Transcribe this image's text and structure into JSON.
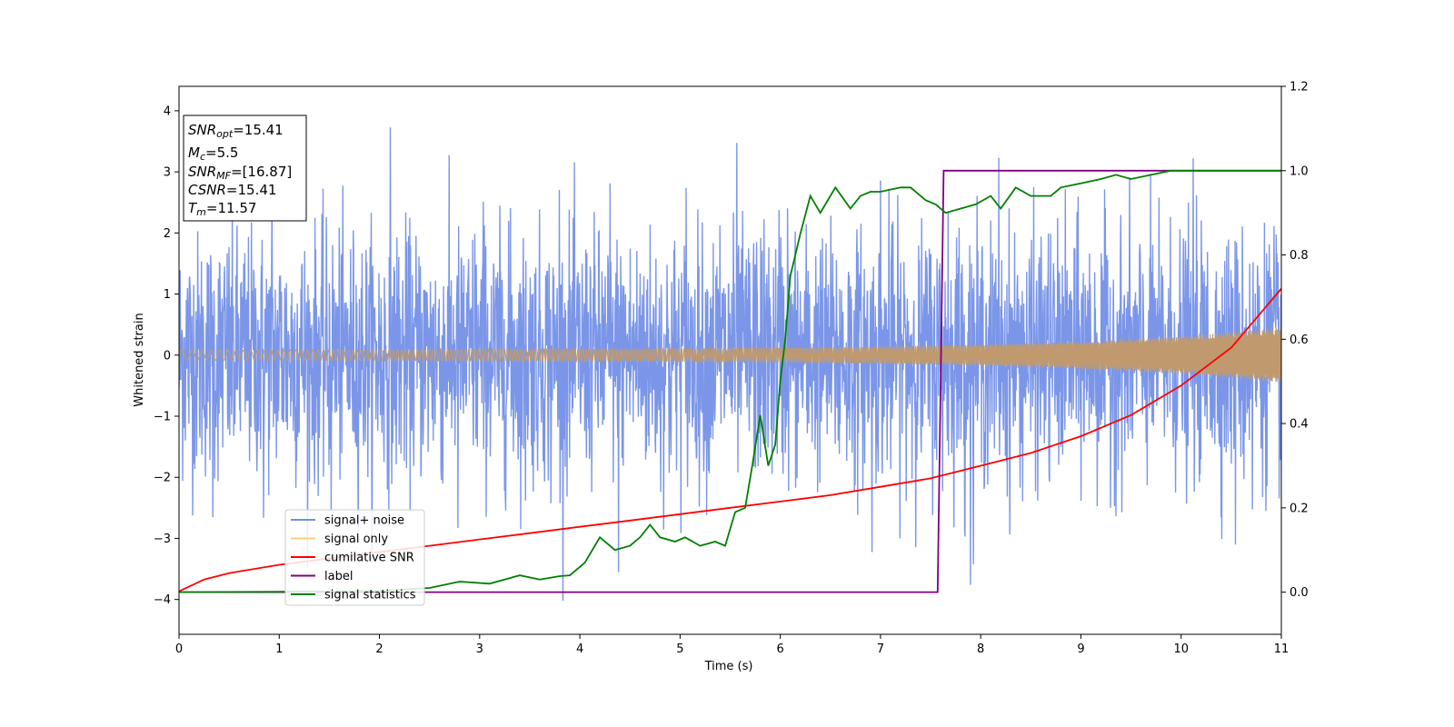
{
  "chart_data": {
    "type": "line",
    "xlabel": "Time (s)",
    "ylabel": "Whitened strain",
    "xlim": [
      0,
      11
    ],
    "ylim_left": [
      -4.57,
      4.4
    ],
    "ylim_right": [
      -0.1,
      1.2
    ],
    "x_ticks": [
      "0",
      "1",
      "2",
      "3",
      "4",
      "5",
      "6",
      "7",
      "8",
      "9",
      "10",
      "11"
    ],
    "y_ticks_left": [
      "−4",
      "−3",
      "−2",
      "−1",
      "0",
      "1",
      "2",
      "3",
      "4"
    ],
    "y_ticks_right": [
      "0.0",
      "0.2",
      "0.4",
      "0.6",
      "0.8",
      "1.0",
      "1.2"
    ],
    "colors": {
      "signal_noise": "#7b96e8",
      "signal_only": "#c09a6e",
      "cumulative_snr": "#ff0000",
      "label": "#800080",
      "signal_statistics": "#008000"
    },
    "legend_position": "lower-left",
    "legend": [
      {
        "name": "signal+ noise",
        "color": "#6f8fe6"
      },
      {
        "name": "signal only",
        "color": "#ffcc80"
      },
      {
        "name": "cumilative SNR",
        "color": "#ff0000"
      },
      {
        "name": "label",
        "color": "#800080"
      },
      {
        "name": "signal statistics",
        "color": "#008000"
      }
    ],
    "info_box": {
      "snr_opt_base": "SNR",
      "snr_opt_sub": "opt",
      "snr_opt_val": "=15.41",
      "mc_base": "M",
      "mc_sub": "c",
      "mc_val": "=5.5",
      "snr_mf_base": "SNR",
      "snr_mf_sub": "MF",
      "snr_mf_val": "=[16.87]",
      "csnr_base": "CSNR",
      "csnr_val": "=15.41",
      "tm_base": "T",
      "tm_sub": "m",
      "tm_val": "=11.57"
    },
    "series": [
      {
        "name": "signal+ noise",
        "axis": "left",
        "description_values": {
          "duration": 11,
          "std": 1.0,
          "peak_max": 4.0,
          "peak_min": -4.2
        }
      },
      {
        "name": "signal only",
        "axis": "left",
        "envelope": {
          "x": [
            0,
            2,
            4,
            6,
            7,
            8,
            9,
            10,
            11
          ],
          "amp": [
            0.08,
            0.09,
            0.1,
            0.12,
            0.14,
            0.17,
            0.22,
            0.3,
            0.45
          ]
        }
      },
      {
        "name": "cumilative SNR",
        "axis": "right",
        "x": [
          0,
          0.25,
          0.5,
          1,
          1.5,
          2,
          2.5,
          3,
          3.5,
          4,
          4.5,
          5,
          5.5,
          6,
          6.5,
          7,
          7.5,
          8,
          8.5,
          9,
          9.5,
          10,
          10.5,
          11
        ],
        "y": [
          0.002,
          0.03,
          0.045,
          0.065,
          0.08,
          0.095,
          0.11,
          0.125,
          0.14,
          0.155,
          0.17,
          0.185,
          0.2,
          0.215,
          0.23,
          0.25,
          0.27,
          0.3,
          0.33,
          0.37,
          0.42,
          0.49,
          0.58,
          0.72
        ]
      },
      {
        "name": "label",
        "axis": "right",
        "x": [
          0,
          7.57,
          7.63,
          11
        ],
        "y": [
          0.0,
          0.0,
          1.0,
          1.0
        ]
      },
      {
        "name": "signal statistics",
        "axis": "right",
        "x": [
          0,
          1,
          2,
          2.5,
          2.8,
          3.1,
          3.4,
          3.6,
          3.8,
          3.9,
          4.05,
          4.2,
          4.35,
          4.5,
          4.6,
          4.7,
          4.8,
          4.95,
          5.05,
          5.2,
          5.35,
          5.45,
          5.55,
          5.65,
          5.72,
          5.8,
          5.88,
          5.95,
          6.0,
          6.05,
          6.1,
          6.2,
          6.3,
          6.4,
          6.55,
          6.7,
          6.8,
          6.9,
          7.0,
          7.2,
          7.3,
          7.45,
          7.55,
          7.65,
          7.8,
          7.95,
          8.1,
          8.2,
          8.35,
          8.5,
          8.7,
          8.8,
          9.0,
          9.2,
          9.35,
          9.5,
          9.7,
          9.9,
          10.1,
          10.3,
          11
        ],
        "y": [
          0.0,
          0.001,
          0.003,
          0.01,
          0.025,
          0.02,
          0.04,
          0.03,
          0.038,
          0.04,
          0.07,
          0.13,
          0.1,
          0.11,
          0.13,
          0.16,
          0.13,
          0.12,
          0.13,
          0.11,
          0.12,
          0.11,
          0.19,
          0.2,
          0.3,
          0.42,
          0.3,
          0.35,
          0.5,
          0.6,
          0.75,
          0.85,
          0.94,
          0.9,
          0.96,
          0.91,
          0.94,
          0.95,
          0.95,
          0.96,
          0.96,
          0.93,
          0.92,
          0.9,
          0.91,
          0.92,
          0.94,
          0.91,
          0.96,
          0.94,
          0.94,
          0.96,
          0.97,
          0.98,
          0.99,
          0.98,
          0.99,
          1.0,
          1.0,
          1.0,
          1.0
        ]
      }
    ]
  }
}
